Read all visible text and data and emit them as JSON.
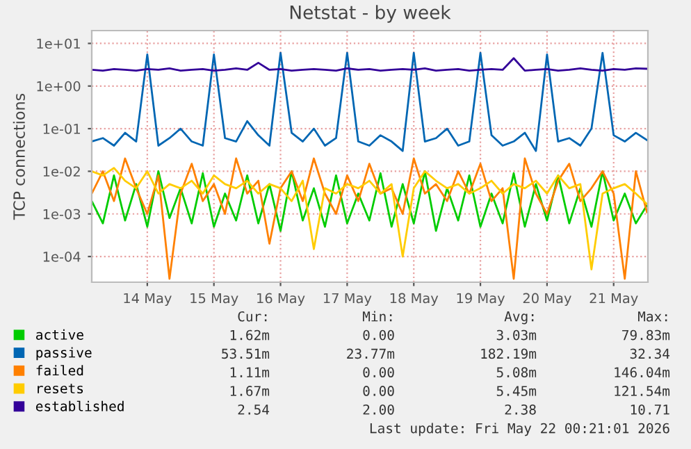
{
  "chart_data": {
    "type": "line",
    "title": "Netstat - by week",
    "ylabel": "TCP connections",
    "x": [
      "2026-05-13T16:00",
      "2026-05-13T20:00",
      "2026-05-14T00:00",
      "2026-05-14T04:00",
      "2026-05-14T08:00",
      "2026-05-14T12:00",
      "2026-05-14T16:00",
      "2026-05-14T20:00",
      "2026-05-15T00:00",
      "2026-05-15T04:00",
      "2026-05-15T08:00",
      "2026-05-15T12:00",
      "2026-05-15T16:00",
      "2026-05-15T20:00",
      "2026-05-16T00:00",
      "2026-05-16T04:00",
      "2026-05-16T08:00",
      "2026-05-16T12:00",
      "2026-05-16T16:00",
      "2026-05-16T20:00",
      "2026-05-17T00:00",
      "2026-05-17T04:00",
      "2026-05-17T08:00",
      "2026-05-17T12:00",
      "2026-05-17T16:00",
      "2026-05-17T20:00",
      "2026-05-18T00:00",
      "2026-05-18T04:00",
      "2026-05-18T08:00",
      "2026-05-18T12:00",
      "2026-05-18T16:00",
      "2026-05-18T20:00",
      "2026-05-19T00:00",
      "2026-05-19T04:00",
      "2026-05-19T08:00",
      "2026-05-19T12:00",
      "2026-05-19T16:00",
      "2026-05-19T20:00",
      "2026-05-20T00:00",
      "2026-05-20T04:00",
      "2026-05-20T08:00",
      "2026-05-20T12:00",
      "2026-05-20T16:00",
      "2026-05-20T20:00",
      "2026-05-21T00:00",
      "2026-05-21T04:00",
      "2026-05-21T08:00",
      "2026-05-21T12:00",
      "2026-05-21T16:00",
      "2026-05-21T20:00",
      "2026-05-22T00:00"
    ],
    "series": [
      {
        "name": "active",
        "color": "#00cc00",
        "values": [
          0.002,
          0.0006,
          0.008,
          0.0007,
          0.005,
          0.0005,
          0.01,
          0.0008,
          0.004,
          0.0006,
          0.009,
          0.0005,
          0.003,
          0.0007,
          0.008,
          0.0006,
          0.005,
          0.0004,
          0.01,
          0.0007,
          0.004,
          0.0005,
          0.008,
          0.0006,
          0.003,
          0.0007,
          0.009,
          0.0005,
          0.005,
          0.0006,
          0.01,
          0.0004,
          0.004,
          0.0007,
          0.008,
          0.0005,
          0.003,
          0.0006,
          0.009,
          0.0005,
          0.005,
          0.0007,
          0.008,
          0.0006,
          0.004,
          0.0005,
          0.01,
          0.0007,
          0.003,
          0.0006,
          0.0016
        ]
      },
      {
        "name": "passive",
        "color": "#0066b3",
        "values": [
          0.05,
          0.06,
          0.04,
          0.08,
          0.05,
          5.5,
          0.04,
          0.06,
          0.1,
          0.05,
          0.04,
          5.5,
          0.06,
          0.05,
          0.15,
          0.07,
          0.04,
          6,
          0.08,
          0.05,
          0.1,
          0.04,
          0.06,
          6,
          0.05,
          0.04,
          0.07,
          0.05,
          0.03,
          6,
          0.05,
          0.06,
          0.1,
          0.04,
          0.05,
          6,
          0.07,
          0.04,
          0.05,
          0.08,
          0.03,
          5.5,
          0.05,
          0.06,
          0.04,
          0.1,
          6,
          0.07,
          0.05,
          0.08,
          0.054
        ]
      },
      {
        "name": "failed",
        "color": "#ff8000",
        "values": [
          0.003,
          0.01,
          0.002,
          0.02,
          0.004,
          0.001,
          0.008,
          3e-05,
          0.003,
          0.015,
          0.002,
          0.005,
          0.001,
          0.02,
          0.003,
          0.006,
          0.0002,
          0.004,
          0.01,
          0.002,
          0.02,
          0.003,
          0.001,
          0.008,
          0.002,
          0.015,
          0.003,
          0.004,
          0.001,
          0.02,
          0.003,
          0.005,
          0.002,
          0.01,
          0.003,
          0.015,
          0.002,
          0.004,
          3e-05,
          0.02,
          0.003,
          0.001,
          0.006,
          0.015,
          0.002,
          0.004,
          0.01,
          0.003,
          3e-05,
          0.01,
          0.0011
        ]
      },
      {
        "name": "resets",
        "color": "#ffcc00",
        "values": [
          0.01,
          0.008,
          0.012,
          0.006,
          0.004,
          0.01,
          0.003,
          0.005,
          0.004,
          0.006,
          0.003,
          0.008,
          0.005,
          0.004,
          0.006,
          0.003,
          0.005,
          0.004,
          0.002,
          0.006,
          0.00015,
          0.004,
          0.003,
          0.005,
          0.004,
          0.006,
          0.003,
          0.005,
          0.0001,
          0.004,
          0.01,
          0.006,
          0.004,
          0.005,
          0.003,
          0.004,
          0.006,
          0.003,
          0.005,
          0.004,
          0.006,
          0.003,
          0.008,
          0.004,
          0.005,
          5e-05,
          0.003,
          0.004,
          0.005,
          0.003,
          0.0017
        ]
      },
      {
        "name": "established",
        "color": "#330099",
        "values": [
          2.4,
          2.3,
          2.5,
          2.4,
          2.3,
          2.5,
          2.4,
          2.6,
          2.3,
          2.4,
          2.5,
          2.3,
          2.4,
          2.6,
          2.4,
          3.5,
          2.4,
          2.5,
          2.3,
          2.4,
          2.5,
          2.4,
          2.3,
          2.6,
          2.4,
          2.5,
          2.3,
          2.4,
          2.5,
          2.4,
          2.6,
          2.3,
          2.4,
          2.5,
          2.3,
          2.4,
          2.5,
          2.4,
          4.5,
          2.3,
          2.4,
          2.5,
          2.3,
          2.4,
          2.6,
          2.4,
          2.3,
          2.5,
          2.4,
          2.6,
          2.54
        ]
      }
    ],
    "log": "y",
    "xlim": [
      "2026-05-13T16:00",
      "2026-05-22T00:20"
    ],
    "xticks": [
      {
        "value": "2026-05-14T12:00",
        "label": "14 May"
      },
      {
        "value": "2026-05-15T12:00",
        "label": "15 May"
      },
      {
        "value": "2026-05-16T12:00",
        "label": "16 May"
      },
      {
        "value": "2026-05-17T12:00",
        "label": "17 May"
      },
      {
        "value": "2026-05-18T12:00",
        "label": "18 May"
      },
      {
        "value": "2026-05-19T12:00",
        "label": "19 May"
      },
      {
        "value": "2026-05-20T12:00",
        "label": "20 May"
      },
      {
        "value": "2026-05-21T12:00",
        "label": "21 May"
      }
    ],
    "ylim": [
      2.5e-05,
      20
    ],
    "yticks": [
      {
        "value": 0.0001,
        "label": "1e-04"
      },
      {
        "value": 0.001,
        "label": "1e-03"
      },
      {
        "value": 0.01,
        "label": "1e-02"
      },
      {
        "value": 0.1,
        "label": "1e-01"
      },
      {
        "value": 1,
        "label": "1e+00"
      },
      {
        "value": 10,
        "label": "1e+01"
      }
    ],
    "grid": true,
    "legend": "bottom left",
    "annotations": [
      "Cur:",
      "Min:",
      "Avg:",
      "Max:",
      "1.62m",
      "0.00",
      "3.03m",
      "79.83m",
      "53.51m",
      "23.77m",
      "182.19m",
      "32.34",
      "1.11m",
      "0.00",
      "5.08m",
      "146.04m",
      "1.67m",
      "0.00",
      "5.45m",
      "121.54m",
      "2.54",
      "2.00",
      "2.38",
      "10.71",
      "Last update: Fri May 22 00:21:01 2026"
    ]
  }
}
